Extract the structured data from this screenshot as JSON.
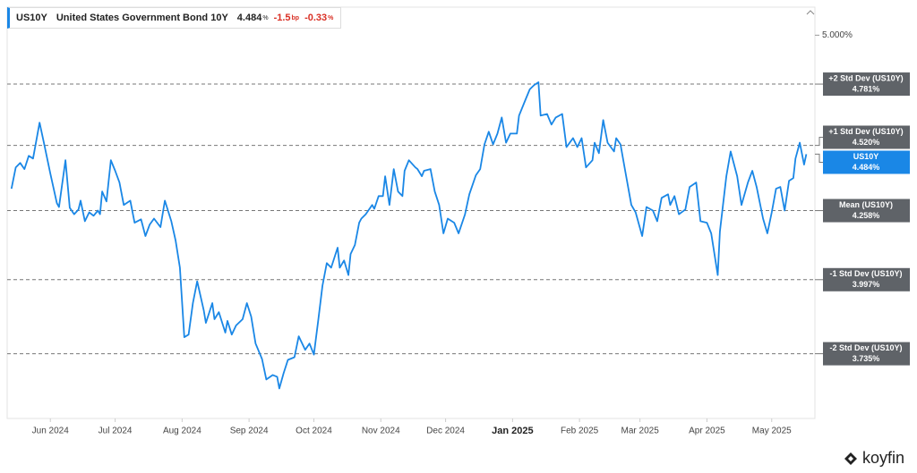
{
  "header": {
    "symbol": "US10Y",
    "name": "United States Government Bond 10Y",
    "price": "4.484",
    "price_unit": "%",
    "change": "-1.5",
    "change_unit": "bp",
    "change_pct": "-0.33",
    "change_pct_unit": "%"
  },
  "brand": "koyfin",
  "chart_data": {
    "type": "line",
    "x": [
      "2024-05-14",
      "2024-05-16",
      "2024-05-18",
      "2024-05-20",
      "2024-05-22",
      "2024-05-24",
      "2024-05-27",
      "2024-05-29",
      "2024-06-01",
      "2024-06-04",
      "2024-06-05",
      "2024-06-08",
      "2024-06-10",
      "2024-06-12",
      "2024-06-14",
      "2024-06-15",
      "2024-06-17",
      "2024-06-19",
      "2024-06-21",
      "2024-06-23",
      "2024-06-24",
      "2024-06-25",
      "2024-06-27",
      "2024-06-29",
      "2024-07-01",
      "2024-07-03",
      "2024-07-05",
      "2024-07-08",
      "2024-07-10",
      "2024-07-13",
      "2024-07-15",
      "2024-07-17",
      "2024-07-19",
      "2024-07-22",
      "2024-07-24",
      "2024-07-27",
      "2024-07-29",
      "2024-07-31",
      "2024-08-02",
      "2024-08-04",
      "2024-08-06",
      "2024-08-08",
      "2024-08-11",
      "2024-08-12",
      "2024-08-15",
      "2024-08-16",
      "2024-08-18",
      "2024-08-21",
      "2024-08-22",
      "2024-08-24",
      "2024-08-26",
      "2024-08-29",
      "2024-08-31",
      "2024-09-02",
      "2024-09-04",
      "2024-09-07",
      "2024-09-09",
      "2024-09-12",
      "2024-09-14",
      "2024-09-15",
      "2024-09-17",
      "2024-09-19",
      "2024-09-22",
      "2024-09-24",
      "2024-09-27",
      "2024-09-29",
      "2024-10-01",
      "2024-10-03",
      "2024-10-05",
      "2024-10-07",
      "2024-10-09",
      "2024-10-12",
      "2024-10-13",
      "2024-10-15",
      "2024-10-17",
      "2024-10-18",
      "2024-10-20",
      "2024-10-22",
      "2024-10-23",
      "2024-10-25",
      "2024-10-28",
      "2024-10-29",
      "2024-10-31",
      "2024-11-02",
      "2024-11-03",
      "2024-11-05",
      "2024-11-07",
      "2024-11-09",
      "2024-11-11",
      "2024-11-12",
      "2024-11-14",
      "2024-11-17",
      "2024-11-18",
      "2024-11-20",
      "2024-11-21",
      "2024-11-24",
      "2024-11-26",
      "2024-11-28",
      "2024-11-30",
      "2024-12-02",
      "2024-12-05",
      "2024-12-07",
      "2024-12-10",
      "2024-12-12",
      "2024-12-15",
      "2024-12-17",
      "2024-12-19",
      "2024-12-21",
      "2024-12-23",
      "2024-12-25",
      "2024-12-27",
      "2024-12-29",
      "2024-12-31",
      "2025-01-03",
      "2025-01-04",
      "2025-01-07",
      "2025-01-09",
      "2025-01-11",
      "2025-01-13",
      "2025-01-14",
      "2025-01-17",
      "2025-01-19",
      "2025-01-21",
      "2025-01-24",
      "2025-01-26",
      "2025-01-29",
      "2025-01-31",
      "2025-02-02",
      "2025-02-04",
      "2025-02-07",
      "2025-02-08",
      "2025-02-10",
      "2025-02-12",
      "2025-02-14",
      "2025-02-17",
      "2025-02-18",
      "2025-02-20",
      "2025-02-22",
      "2025-02-25",
      "2025-02-27",
      "2025-03-02",
      "2025-03-04",
      "2025-03-07",
      "2025-03-09",
      "2025-03-11",
      "2025-03-14",
      "2025-03-15",
      "2025-03-17",
      "2025-03-19",
      "2025-03-22",
      "2025-03-24",
      "2025-03-27",
      "2025-03-29",
      "2025-04-01",
      "2025-04-03",
      "2025-04-06",
      "2025-04-07",
      "2025-04-10",
      "2025-04-12",
      "2025-04-15",
      "2025-04-17",
      "2025-04-20",
      "2025-04-22",
      "2025-04-24",
      "2025-04-27",
      "2025-04-29",
      "2025-05-01",
      "2025-05-03",
      "2025-05-05",
      "2025-05-07",
      "2025-05-09",
      "2025-05-11",
      "2025-05-12",
      "2025-05-14",
      "2025-05-16",
      "2025-05-17"
    ],
    "series": [
      {
        "name": "US10Y",
        "color": "#1a87e6",
        "last_value_label": "4.484%",
        "values": [
          4.344,
          4.43,
          4.448,
          4.423,
          4.477,
          4.466,
          4.615,
          4.531,
          4.405,
          4.287,
          4.272,
          4.459,
          4.269,
          4.244,
          4.262,
          4.297,
          4.217,
          4.251,
          4.238,
          4.258,
          4.244,
          4.333,
          4.294,
          4.459,
          4.416,
          4.369,
          4.28,
          4.297,
          4.211,
          4.224,
          4.16,
          4.204,
          4.227,
          4.194,
          4.297,
          4.217,
          4.143,
          4.041,
          3.792,
          3.801,
          3.912,
          3.991,
          3.887,
          3.842,
          3.912,
          3.855,
          3.88,
          3.808,
          3.849,
          3.801,
          3.833,
          3.855,
          3.912,
          3.864,
          3.77,
          3.717,
          3.648,
          3.663,
          3.657,
          3.618,
          3.669,
          3.714,
          3.723,
          3.795,
          3.748,
          3.77,
          3.732,
          3.849,
          3.975,
          4.058,
          4.041,
          4.116,
          4.041,
          4.068,
          4.014,
          4.092,
          4.126,
          4.211,
          4.227,
          4.244,
          4.28,
          4.265,
          4.315,
          4.315,
          4.394,
          4.28,
          4.423,
          4.333,
          4.315,
          4.416,
          4.459,
          4.43,
          4.423,
          4.394,
          4.416,
          4.423,
          4.333,
          4.28,
          4.17,
          4.227,
          4.211,
          4.17,
          4.244,
          4.322,
          4.398,
          4.423,
          4.524,
          4.577,
          4.524,
          4.569,
          4.637,
          4.531,
          4.569,
          4.569,
          4.645,
          4.713,
          4.758,
          4.777,
          4.789,
          4.645,
          4.652,
          4.607,
          4.637,
          4.652,
          4.513,
          4.55,
          4.513,
          4.55,
          4.43,
          4.459,
          4.531,
          4.488,
          4.626,
          4.531,
          4.495,
          4.55,
          4.524,
          4.423,
          4.28,
          4.251,
          4.16,
          4.272,
          4.258,
          4.217,
          4.308,
          4.322,
          4.28,
          4.315,
          4.244,
          4.262,
          4.351,
          4.369,
          4.217,
          4.211,
          4.17,
          4.014,
          4.177,
          4.394,
          4.495,
          4.394,
          4.28,
          4.369,
          4.416,
          4.351,
          4.227,
          4.17,
          4.251,
          4.344,
          4.351,
          4.258,
          4.376,
          4.387,
          4.466,
          4.531,
          4.441,
          4.484
        ]
      }
    ],
    "xlim": [
      "2024-05-12",
      "2025-05-21"
    ],
    "xticks": [
      {
        "value": "2024-06-01",
        "label": "Jun 2024"
      },
      {
        "value": "2024-07-01",
        "label": "Jul 2024"
      },
      {
        "value": "2024-08-01",
        "label": "Aug 2024"
      },
      {
        "value": "2024-09-01",
        "label": "Sep 2024"
      },
      {
        "value": "2024-10-01",
        "label": "Oct 2024"
      },
      {
        "value": "2024-11-01",
        "label": "Nov 2024"
      },
      {
        "value": "2024-12-01",
        "label": "Dec 2024"
      },
      {
        "value": "2025-01-01",
        "label": "Jan 2025"
      },
      {
        "value": "2025-02-01",
        "label": "Feb 2025"
      },
      {
        "value": "2025-03-01",
        "label": "Mar 2025"
      },
      {
        "value": "2025-04-01",
        "label": "Apr 2025"
      },
      {
        "value": "2025-05-01",
        "label": "May 2025"
      }
    ],
    "ylim": [
      3.52,
      5.13
    ],
    "yticks": [
      {
        "value": 5,
        "label": "5.000%"
      }
    ],
    "log_scale": true,
    "reference_lines": [
      {
        "name": "+2 Std Dev (US10Y)",
        "value": 4.781,
        "value_label": "4.781%"
      },
      {
        "name": "+1 Std Dev (US10Y)",
        "value": 4.52,
        "value_label": "4.520%"
      },
      {
        "name": "Mean (US10Y)",
        "value": 4.258,
        "value_label": "4.258%"
      },
      {
        "name": "-1 Std Dev (US10Y)",
        "value": 3.997,
        "value_label": "3.997%"
      },
      {
        "name": "-2 Std Dev (US10Y)",
        "value": 3.735,
        "value_label": "3.735%"
      }
    ]
  }
}
